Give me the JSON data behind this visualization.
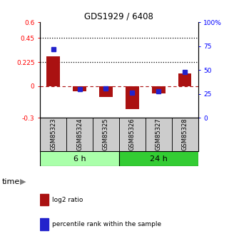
{
  "title": "GDS1929 / 6408",
  "samples": [
    "GSM85323",
    "GSM85324",
    "GSM85325",
    "GSM85326",
    "GSM85327",
    "GSM85328"
  ],
  "log2_ratio": [
    0.28,
    -0.05,
    -0.1,
    -0.22,
    -0.07,
    0.12
  ],
  "percentile_rank": [
    72,
    30,
    31,
    26,
    28,
    48
  ],
  "groups": {
    "6 h": [
      0,
      1,
      2
    ],
    "24 h": [
      3,
      4,
      5
    ]
  },
  "group_order": [
    "6 h",
    "24 h"
  ],
  "group_colors_light": "#aaffaa",
  "group_colors_dark": "#33cc33",
  "bar_color": "#aa1111",
  "dot_color": "#2222cc",
  "ylim_left": [
    -0.3,
    0.6
  ],
  "ylim_right": [
    0,
    100
  ],
  "yticks_left": [
    -0.3,
    0.0,
    0.225,
    0.45,
    0.6
  ],
  "ytick_labels_left": [
    "-0.3",
    "0",
    "0.225",
    "0.45",
    "0.6"
  ],
  "yticks_right": [
    0,
    25,
    50,
    75,
    100
  ],
  "ytick_labels_right": [
    "0",
    "25",
    "50",
    "75",
    "100%"
  ],
  "hlines": [
    0.45,
    0.225
  ],
  "zero_line": 0.0,
  "legend_items": [
    "log2 ratio",
    "percentile rank within the sample"
  ],
  "legend_colors": [
    "#aa1111",
    "#2222cc"
  ],
  "background_sample_box": "#cccccc"
}
